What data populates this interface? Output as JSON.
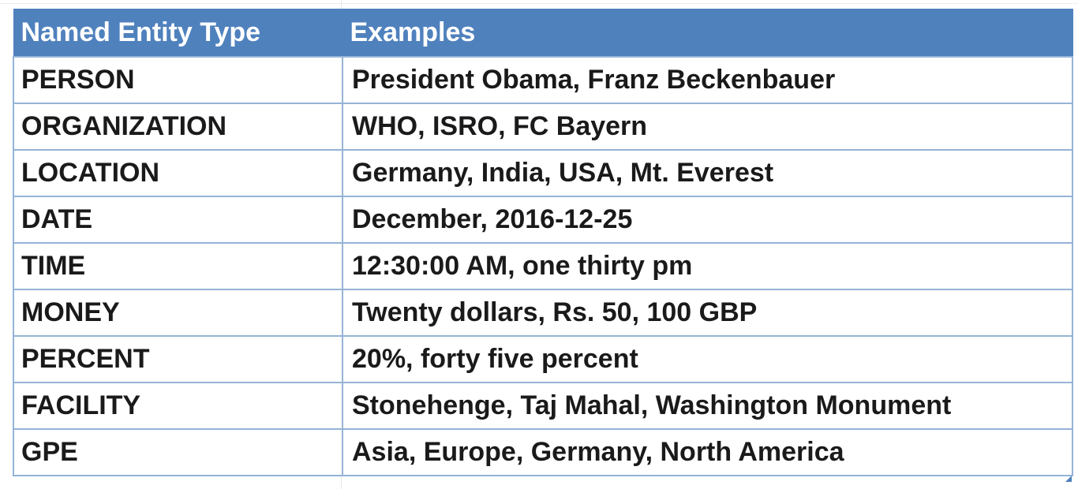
{
  "table": {
    "headers": [
      "Named Entity Type",
      "Examples"
    ],
    "rows": [
      {
        "type": "PERSON",
        "examples": "President Obama, Franz Beckenbauer"
      },
      {
        "type": "ORGANIZATION",
        "examples": "WHO, ISRO, FC Bayern"
      },
      {
        "type": "LOCATION",
        "examples": "Germany, India, USA, Mt. Everest"
      },
      {
        "type": "DATE",
        "examples": "December, 2016-12-25"
      },
      {
        "type": "TIME",
        "examples": "12:30:00 AM, one thirty pm"
      },
      {
        "type": "MONEY",
        "examples": "Twenty dollars, Rs. 50, 100 GBP"
      },
      {
        "type": "PERCENT",
        "examples": "20%, forty five percent"
      },
      {
        "type": "FACILITY",
        "examples": "Stonehenge, Taj Mahal, Washington Monument"
      },
      {
        "type": "GPE",
        "examples": "Asia, Europe, Germany, North America"
      }
    ]
  },
  "colors": {
    "header_bg": "#4f81bd",
    "header_text": "#ffffff",
    "border": "#95b3d7",
    "cell_text": "#1a1a1a"
  }
}
